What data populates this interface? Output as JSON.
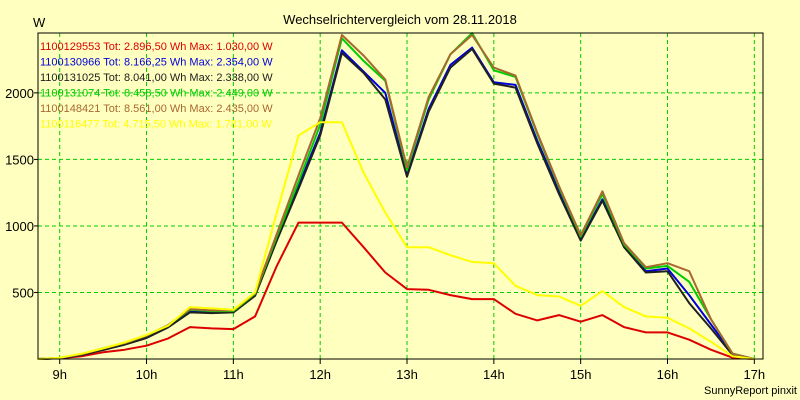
{
  "chart_data": {
    "type": "line",
    "title": "Wechselrichtervergleich vom 28.11.2018",
    "ylabel": "W",
    "credit": "SunnyReport pinxit",
    "grid": true,
    "xlim": [
      8.75,
      17.1
    ],
    "ylim": [
      0,
      2450
    ],
    "x_ticks": [
      {
        "value": 9,
        "label": "9h"
      },
      {
        "value": 10,
        "label": "10h"
      },
      {
        "value": 11,
        "label": "11h"
      },
      {
        "value": 12,
        "label": "12h"
      },
      {
        "value": 13,
        "label": "13h"
      },
      {
        "value": 14,
        "label": "14h"
      },
      {
        "value": 15,
        "label": "15h"
      },
      {
        "value": 16,
        "label": "16h"
      },
      {
        "value": 17,
        "label": "17h"
      }
    ],
    "y_ticks": [
      {
        "value": 500,
        "label": "500"
      },
      {
        "value": 1000,
        "label": "1000"
      },
      {
        "value": 1500,
        "label": "1500"
      },
      {
        "value": 2000,
        "label": "2000"
      }
    ],
    "x": [
      8.75,
      9.0,
      9.25,
      9.5,
      9.75,
      10.0,
      10.25,
      10.5,
      10.75,
      11.0,
      11.25,
      11.5,
      11.75,
      12.0,
      12.25,
      12.5,
      12.75,
      13.0,
      13.25,
      13.5,
      13.75,
      14.0,
      14.25,
      14.5,
      14.75,
      15.0,
      15.25,
      15.5,
      15.75,
      16.0,
      16.25,
      16.5,
      16.75,
      17.0
    ],
    "series": [
      {
        "name": "1100129553",
        "legend": "1100129553 Tot: 2.896,50 Wh Max: 1.030,00 W",
        "color": "#dd0000",
        "values": [
          0,
          5,
          20,
          50,
          70,
          100,
          155,
          240,
          230,
          225,
          320,
          700,
          1025,
          1025,
          1025,
          840,
          650,
          525,
          520,
          480,
          450,
          450,
          340,
          290,
          330,
          280,
          330,
          240,
          200,
          200,
          145,
          70,
          10,
          0
        ]
      },
      {
        "name": "1100130966",
        "legend": "1100130966 Tot: 8.166,25 Wh Max: 2.354,00 W",
        "color": "#0000dd",
        "values": [
          0,
          5,
          30,
          70,
          110,
          160,
          240,
          355,
          350,
          355,
          480,
          900,
          1300,
          1700,
          2320,
          2160,
          2000,
          1380,
          1880,
          2210,
          2340,
          2080,
          2060,
          1640,
          1260,
          900,
          1200,
          850,
          660,
          680,
          480,
          260,
          40,
          0
        ]
      },
      {
        "name": "1100131025",
        "legend": "1100131025 Tot: 8.041,00 Wh Max: 2.338,00 W",
        "color": "#202020",
        "values": [
          0,
          5,
          30,
          68,
          108,
          158,
          238,
          350,
          345,
          350,
          475,
          890,
          1280,
          1680,
          2300,
          2150,
          1950,
          1370,
          1860,
          2190,
          2330,
          2070,
          2040,
          1620,
          1240,
          890,
          1190,
          840,
          650,
          660,
          420,
          230,
          30,
          0
        ]
      },
      {
        "name": "1100131074",
        "legend": "1100131074 Tot: 8.458,50 Wh Max: 2.449,00 W",
        "color": "#00cc00",
        "values": [
          0,
          8,
          35,
          80,
          120,
          175,
          255,
          370,
          360,
          360,
          490,
          920,
          1330,
          1760,
          2410,
          2240,
          2090,
          1420,
          1950,
          2290,
          2449,
          2170,
          2120,
          1690,
          1290,
          920,
          1240,
          860,
          680,
          700,
          580,
          300,
          40,
          0
        ]
      },
      {
        "name": "1100148421",
        "legend": "1100148421 Tot: 8.561,00 Wh Max: 2.435,00 W",
        "color": "#a86830",
        "values": [
          0,
          8,
          35,
          80,
          120,
          175,
          255,
          375,
          365,
          365,
          495,
          940,
          1380,
          1810,
          2435,
          2280,
          2100,
          1440,
          1970,
          2290,
          2435,
          2190,
          2130,
          1700,
          1300,
          930,
          1260,
          870,
          690,
          720,
          660,
          300,
          40,
          0
        ]
      },
      {
        "name": "1100116477",
        "legend": "1100116477 Tot: 4.715,50 Wh Max: 1.781,00 W",
        "color": "#ffff00",
        "values": [
          0,
          10,
          40,
          80,
          125,
          180,
          250,
          390,
          380,
          370,
          500,
          1100,
          1680,
          1780,
          1780,
          1400,
          1100,
          840,
          840,
          780,
          730,
          720,
          550,
          480,
          470,
          400,
          510,
          390,
          320,
          310,
          230,
          130,
          20,
          0
        ]
      }
    ]
  }
}
